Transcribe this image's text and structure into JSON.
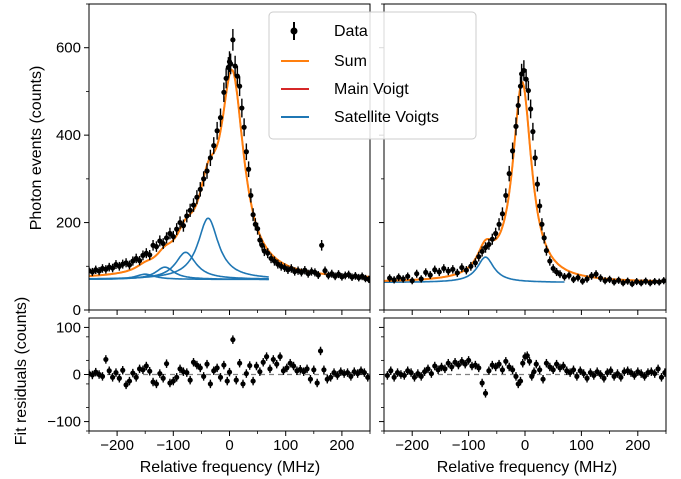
{
  "figure": {
    "ylabel_top": "Photon events (counts)",
    "ylabel_bottom": "Fit residuals (counts)",
    "xlabel": "Relative frequency (MHz)"
  },
  "legend": {
    "data": "Data",
    "sum": "Sum",
    "main": "Main Voigt",
    "satellite": "Satellite Voigts"
  },
  "colors": {
    "data": "#000000",
    "sum": "#ff7f0e",
    "main": "#d62728",
    "satellite": "#1f77b4",
    "zero_line": "#808080"
  },
  "chart_data": [
    {
      "type": "scatter",
      "panel": "top-left",
      "xlim": [
        -250,
        250
      ],
      "ylim": [
        0,
        700
      ],
      "xticks": [
        -200,
        -100,
        0,
        100,
        200
      ],
      "yticks": [
        0,
        200,
        400,
        600
      ],
      "baseline": 70,
      "main_peak": {
        "center": 5,
        "amplitude": 445,
        "width": 25
      },
      "satellite_peaks": [
        {
          "center": -38,
          "amplitude": 140,
          "width": 22
        },
        {
          "center": -78,
          "amplitude": 62,
          "width": 22
        },
        {
          "center": -115,
          "amplitude": 28,
          "width": 20
        },
        {
          "center": -150,
          "amplitude": 12,
          "width": 20
        }
      ],
      "data_points": [
        [
          -250,
          90
        ],
        [
          -244,
          87
        ],
        [
          -238,
          92
        ],
        [
          -232,
          89
        ],
        [
          -226,
          95
        ],
        [
          -220,
          93
        ],
        [
          -214,
          98
        ],
        [
          -208,
          96
        ],
        [
          -202,
          104
        ],
        [
          -196,
          100
        ],
        [
          -190,
          105
        ],
        [
          -184,
          108
        ],
        [
          -178,
          103
        ],
        [
          -172,
          112
        ],
        [
          -166,
          118
        ],
        [
          -160,
          113
        ],
        [
          -154,
          125
        ],
        [
          -148,
          130
        ],
        [
          -142,
          126
        ],
        [
          -136,
          148
        ],
        [
          -130,
          145
        ],
        [
          -124,
          158
        ],
        [
          -118,
          152
        ],
        [
          -112,
          165
        ],
        [
          -106,
          175
        ],
        [
          -100,
          168
        ],
        [
          -94,
          185
        ],
        [
          -88,
          200
        ],
        [
          -82,
          193
        ],
        [
          -76,
          215
        ],
        [
          -70,
          228
        ],
        [
          -64,
          240
        ],
        [
          -58,
          258
        ],
        [
          -52,
          276
        ],
        [
          -46,
          300
        ],
        [
          -40,
          318
        ],
        [
          -34,
          348
        ],
        [
          -28,
          376
        ],
        [
          -22,
          410
        ],
        [
          -16,
          440
        ],
        [
          -10,
          498
        ],
        [
          -6,
          530
        ],
        [
          -2,
          555
        ],
        [
          0,
          568
        ],
        [
          2,
          563
        ],
        [
          6,
          618
        ],
        [
          10,
          558
        ],
        [
          14,
          535
        ],
        [
          18,
          512
        ],
        [
          22,
          462
        ],
        [
          26,
          418
        ],
        [
          30,
          362
        ],
        [
          34,
          322
        ],
        [
          38,
          262
        ],
        [
          42,
          218
        ],
        [
          46,
          196
        ],
        [
          50,
          186
        ],
        [
          54,
          160
        ],
        [
          58,
          148
        ],
        [
          62,
          135
        ],
        [
          68,
          130
        ],
        [
          74,
          118
        ],
        [
          80,
          112
        ],
        [
          86,
          105
        ],
        [
          92,
          100
        ],
        [
          98,
          97
        ],
        [
          104,
          92
        ],
        [
          110,
          95
        ],
        [
          116,
          88
        ],
        [
          122,
          90
        ],
        [
          128,
          86
        ],
        [
          134,
          91
        ],
        [
          140,
          83
        ],
        [
          146,
          88
        ],
        [
          152,
          86
        ],
        [
          158,
          80
        ],
        [
          164,
          148
        ],
        [
          170,
          90
        ],
        [
          176,
          79
        ],
        [
          182,
          83
        ],
        [
          188,
          77
        ],
        [
          194,
          82
        ],
        [
          200,
          76
        ],
        [
          206,
          79
        ],
        [
          212,
          81
        ],
        [
          218,
          75
        ],
        [
          224,
          78
        ],
        [
          230,
          74
        ],
        [
          236,
          77
        ],
        [
          242,
          72
        ],
        [
          248,
          70
        ]
      ]
    },
    {
      "type": "scatter",
      "panel": "top-right",
      "xlim": [
        -250,
        250
      ],
      "ylim": [
        0,
        700
      ],
      "xticks": [
        -200,
        -100,
        0,
        100,
        200
      ],
      "baseline": 63,
      "main_peak": {
        "center": -5,
        "amplitude": 455,
        "width": 20
      },
      "satellite_peaks": [
        {
          "center": -70,
          "amplitude": 58,
          "width": 18
        }
      ],
      "data_points": [
        [
          -240,
          73
        ],
        [
          -232,
          69
        ],
        [
          -224,
          75
        ],
        [
          -216,
          71
        ],
        [
          -208,
          77
        ],
        [
          -200,
          67
        ],
        [
          -192,
          83
        ],
        [
          -184,
          71
        ],
        [
          -176,
          86
        ],
        [
          -168,
          80
        ],
        [
          -160,
          92
        ],
        [
          -152,
          87
        ],
        [
          -144,
          95
        ],
        [
          -136,
          89
        ],
        [
          -128,
          93
        ],
        [
          -120,
          85
        ],
        [
          -112,
          97
        ],
        [
          -104,
          91
        ],
        [
          -96,
          100
        ],
        [
          -88,
          108
        ],
        [
          -82,
          122
        ],
        [
          -76,
          134
        ],
        [
          -70,
          143
        ],
        [
          -64,
          150
        ],
        [
          -58,
          162
        ],
        [
          -52,
          175
        ],
        [
          -46,
          196
        ],
        [
          -40,
          220
        ],
        [
          -34,
          262
        ],
        [
          -28,
          312
        ],
        [
          -22,
          364
        ],
        [
          -16,
          420
        ],
        [
          -12,
          468
        ],
        [
          -8,
          512
        ],
        [
          -6,
          540
        ],
        [
          -2,
          548
        ],
        [
          2,
          528
        ],
        [
          6,
          502
        ],
        [
          10,
          460
        ],
        [
          14,
          408
        ],
        [
          18,
          348
        ],
        [
          22,
          288
        ],
        [
          26,
          238
        ],
        [
          30,
          196
        ],
        [
          34,
          165
        ],
        [
          38,
          136
        ],
        [
          44,
          112
        ],
        [
          50,
          95
        ],
        [
          56,
          87
        ],
        [
          62,
          82
        ],
        [
          70,
          76
        ],
        [
          78,
          79
        ],
        [
          86,
          70
        ],
        [
          94,
          74
        ],
        [
          102,
          66
        ],
        [
          110,
          71
        ],
        [
          118,
          78
        ],
        [
          126,
          82
        ],
        [
          134,
          73
        ],
        [
          142,
          67
        ],
        [
          150,
          70
        ],
        [
          158,
          64
        ],
        [
          166,
          68
        ],
        [
          174,
          62
        ],
        [
          182,
          66
        ],
        [
          190,
          60
        ],
        [
          198,
          65
        ],
        [
          206,
          62
        ],
        [
          214,
          66
        ],
        [
          222,
          62
        ],
        [
          230,
          65
        ],
        [
          238,
          64
        ],
        [
          246,
          67
        ]
      ]
    },
    {
      "type": "scatter",
      "panel": "bottom-left",
      "xlim": [
        -250,
        250
      ],
      "ylim": [
        -120,
        120
      ],
      "xticks": [
        -200,
        -100,
        0,
        100,
        200
      ],
      "yticks": [
        -100,
        0,
        100
      ],
      "points": [
        [
          -250,
          2
        ],
        [
          -244,
          -1
        ],
        [
          -238,
          5
        ],
        [
          -232,
          0
        ],
        [
          -226,
          -4
        ],
        [
          -220,
          32
        ],
        [
          -214,
          8
        ],
        [
          -208,
          -6
        ],
        [
          -202,
          4
        ],
        [
          -196,
          -8
        ],
        [
          -190,
          9
        ],
        [
          -184,
          -22
        ],
        [
          -178,
          -14
        ],
        [
          -172,
          3
        ],
        [
          -166,
          -6
        ],
        [
          -160,
          12
        ],
        [
          -154,
          10
        ],
        [
          -148,
          18
        ],
        [
          -142,
          7
        ],
        [
          -136,
          -16
        ],
        [
          -130,
          -20
        ],
        [
          -124,
          2
        ],
        [
          -118,
          -8
        ],
        [
          -112,
          23
        ],
        [
          -106,
          -18
        ],
        [
          -100,
          -14
        ],
        [
          -94,
          -6
        ],
        [
          -88,
          12
        ],
        [
          -82,
          6
        ],
        [
          -76,
          4
        ],
        [
          -70,
          -12
        ],
        [
          -64,
          26
        ],
        [
          -58,
          20
        ],
        [
          -52,
          14
        ],
        [
          -46,
          -4
        ],
        [
          -40,
          22
        ],
        [
          -34,
          -20
        ],
        [
          -28,
          8
        ],
        [
          -22,
          14
        ],
        [
          -16,
          -6
        ],
        [
          -10,
          20
        ],
        [
          -4,
          -14
        ],
        [
          0,
          5
        ],
        [
          6,
          74
        ],
        [
          12,
          -12
        ],
        [
          18,
          24
        ],
        [
          24,
          -20
        ],
        [
          30,
          2
        ],
        [
          36,
          19
        ],
        [
          42,
          -14
        ],
        [
          48,
          18
        ],
        [
          54,
          6
        ],
        [
          60,
          26
        ],
        [
          66,
          38
        ],
        [
          72,
          12
        ],
        [
          78,
          32
        ],
        [
          84,
          22
        ],
        [
          90,
          38
        ],
        [
          96,
          8
        ],
        [
          102,
          14
        ],
        [
          108,
          24
        ],
        [
          114,
          18
        ],
        [
          120,
          8
        ],
        [
          126,
          11
        ],
        [
          132,
          6
        ],
        [
          138,
          12
        ],
        [
          144,
          -10
        ],
        [
          150,
          10
        ],
        [
          156,
          -18
        ],
        [
          162,
          50
        ],
        [
          168,
          10
        ],
        [
          174,
          -10
        ],
        [
          180,
          -6
        ],
        [
          186,
          4
        ],
        [
          192,
          -2
        ],
        [
          198,
          6
        ],
        [
          204,
          2
        ],
        [
          210,
          4
        ],
        [
          216,
          -4
        ],
        [
          222,
          6
        ],
        [
          228,
          2
        ],
        [
          234,
          8
        ],
        [
          240,
          4
        ],
        [
          246,
          -6
        ]
      ]
    },
    {
      "type": "scatter",
      "panel": "bottom-right",
      "xlim": [
        -250,
        250
      ],
      "ylim": [
        -120,
        120
      ],
      "xticks": [
        -200,
        -100,
        0,
        100,
        200
      ],
      "points": [
        [
          -244,
          -2
        ],
        [
          -238,
          8
        ],
        [
          -232,
          -6
        ],
        [
          -226,
          4
        ],
        [
          -220,
          0
        ],
        [
          -214,
          -2
        ],
        [
          -208,
          8
        ],
        [
          -202,
          4
        ],
        [
          -196,
          -6
        ],
        [
          -190,
          2
        ],
        [
          -184,
          -4
        ],
        [
          -178,
          6
        ],
        [
          -172,
          12
        ],
        [
          -166,
          2
        ],
        [
          -160,
          18
        ],
        [
          -154,
          10
        ],
        [
          -148,
          16
        ],
        [
          -142,
          12
        ],
        [
          -136,
          24
        ],
        [
          -130,
          16
        ],
        [
          -124,
          26
        ],
        [
          -118,
          20
        ],
        [
          -112,
          28
        ],
        [
          -106,
          22
        ],
        [
          -100,
          30
        ],
        [
          -94,
          18
        ],
        [
          -88,
          20
        ],
        [
          -82,
          14
        ],
        [
          -76,
          -18
        ],
        [
          -70,
          -40
        ],
        [
          -64,
          8
        ],
        [
          -58,
          20
        ],
        [
          -52,
          16
        ],
        [
          -46,
          22
        ],
        [
          -40,
          10
        ],
        [
          -34,
          28
        ],
        [
          -28,
          16
        ],
        [
          -22,
          10
        ],
        [
          -16,
          -4
        ],
        [
          -12,
          -20
        ],
        [
          -8,
          -14
        ],
        [
          -4,
          24
        ],
        [
          0,
          38
        ],
        [
          4,
          40
        ],
        [
          8,
          28
        ],
        [
          12,
          -4
        ],
        [
          16,
          6
        ],
        [
          20,
          22
        ],
        [
          26,
          10
        ],
        [
          32,
          -10
        ],
        [
          38,
          24
        ],
        [
          44,
          16
        ],
        [
          50,
          10
        ],
        [
          56,
          22
        ],
        [
          62,
          14
        ],
        [
          68,
          18
        ],
        [
          74,
          8
        ],
        [
          80,
          4
        ],
        [
          86,
          10
        ],
        [
          92,
          -4
        ],
        [
          98,
          8
        ],
        [
          104,
          2
        ],
        [
          110,
          -8
        ],
        [
          116,
          4
        ],
        [
          122,
          -2
        ],
        [
          128,
          6
        ],
        [
          134,
          0
        ],
        [
          140,
          -8
        ],
        [
          146,
          4
        ],
        [
          152,
          8
        ],
        [
          158,
          -4
        ],
        [
          164,
          2
        ],
        [
          170,
          -6
        ],
        [
          176,
          6
        ],
        [
          182,
          8
        ],
        [
          188,
          4
        ],
        [
          194,
          -2
        ],
        [
          200,
          6
        ],
        [
          206,
          2
        ],
        [
          212,
          -4
        ],
        [
          218,
          4
        ],
        [
          224,
          6
        ],
        [
          230,
          2
        ],
        [
          236,
          12
        ],
        [
          242,
          -6
        ],
        [
          248,
          4
        ]
      ]
    }
  ]
}
